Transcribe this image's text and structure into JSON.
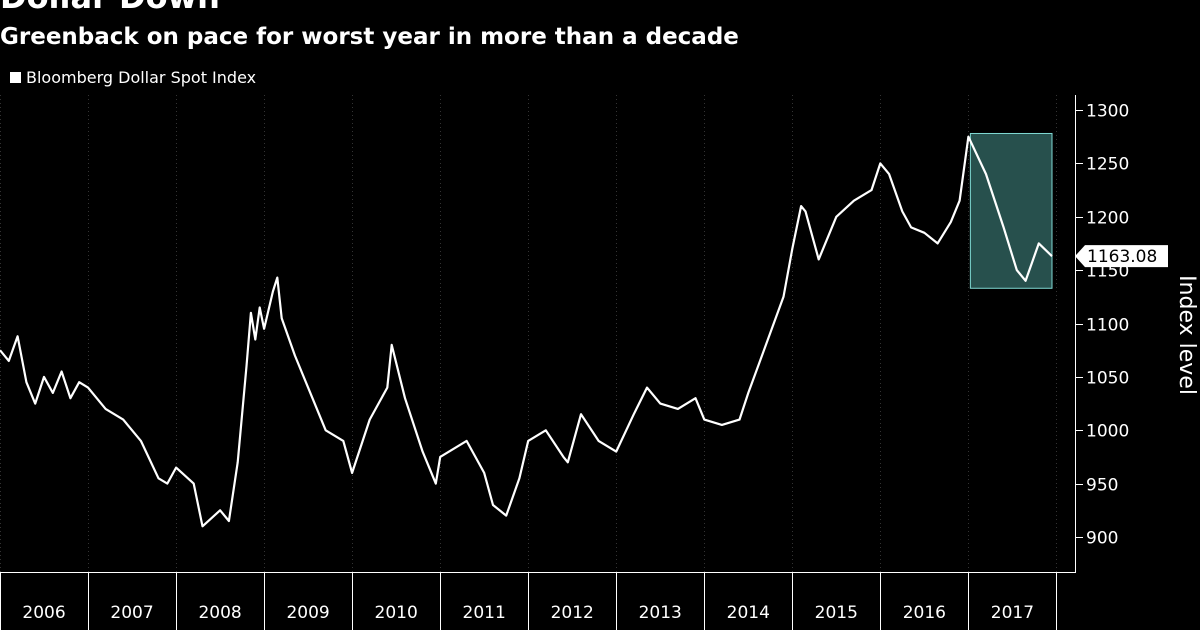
{
  "header": {
    "title": "Dollar Down",
    "subtitle": "Greenback on pace for worst year in more than a decade"
  },
  "legend": {
    "label": "Bloomberg Dollar Spot Index"
  },
  "last_value_label": "1163.08",
  "colors": {
    "background": "#000000",
    "line": "#ffffff",
    "highlight": "#2e5e5b",
    "highlight_border": "#7fd9d3"
  },
  "chart_data": {
    "type": "line",
    "title": "Dollar Down",
    "subtitle": "Greenback on pace for worst year in more than a decade",
    "xlabel": "",
    "ylabel": "Index level",
    "ylim": [
      870,
      1310
    ],
    "yticks": [
      900,
      950,
      1000,
      1050,
      1100,
      1150,
      1200,
      1250,
      1300
    ],
    "xlim": [
      2006.0,
      2018.0
    ],
    "x_categories": [
      "2006",
      "2007",
      "2008",
      "2009",
      "2010",
      "2011",
      "2012",
      "2013",
      "2014",
      "2015",
      "2016",
      "2017"
    ],
    "grid": {
      "vertical": true,
      "horizontal": false
    },
    "legend_position": "top-left",
    "highlight": {
      "x_start": 2017.0,
      "x_end": 2017.95,
      "y_start": 1133,
      "y_end": 1278
    },
    "last_value": 1163.08,
    "series": [
      {
        "name": "Bloomberg Dollar Spot Index",
        "x": [
          2006.0,
          2006.1,
          2006.2,
          2006.3,
          2006.4,
          2006.5,
          2006.6,
          2006.7,
          2006.8,
          2006.9,
          2007.0,
          2007.2,
          2007.4,
          2007.6,
          2007.8,
          2007.9,
          2008.0,
          2008.2,
          2008.3,
          2008.5,
          2008.6,
          2008.7,
          2008.8,
          2008.85,
          2008.9,
          2008.95,
          2009.0,
          2009.1,
          2009.15,
          2009.2,
          2009.35,
          2009.5,
          2009.7,
          2009.9,
          2010.0,
          2010.2,
          2010.4,
          2010.45,
          2010.6,
          2010.8,
          2010.95,
          2011.0,
          2011.3,
          2011.5,
          2011.6,
          2011.75,
          2011.9,
          2012.0,
          2012.2,
          2012.4,
          2012.45,
          2012.6,
          2012.8,
          2013.0,
          2013.2,
          2013.35,
          2013.5,
          2013.7,
          2013.9,
          2014.0,
          2014.2,
          2014.4,
          2014.5,
          2014.7,
          2014.9,
          2015.0,
          2015.1,
          2015.15,
          2015.3,
          2015.5,
          2015.7,
          2015.9,
          2016.0,
          2016.1,
          2016.25,
          2016.35,
          2016.5,
          2016.65,
          2016.8,
          2016.9,
          2017.0,
          2017.2,
          2017.4,
          2017.55,
          2017.65,
          2017.8,
          2017.95
        ],
        "y": [
          1075,
          1065,
          1088,
          1045,
          1025,
          1050,
          1035,
          1055,
          1030,
          1045,
          1040,
          1020,
          1010,
          990,
          955,
          950,
          965,
          950,
          910,
          925,
          915,
          970,
          1060,
          1110,
          1085,
          1115,
          1095,
          1130,
          1143,
          1105,
          1070,
          1040,
          1000,
          990,
          960,
          1010,
          1040,
          1080,
          1030,
          980,
          950,
          975,
          990,
          960,
          930,
          920,
          955,
          990,
          1000,
          975,
          970,
          1015,
          990,
          980,
          1015,
          1040,
          1025,
          1020,
          1030,
          1010,
          1005,
          1010,
          1035,
          1080,
          1125,
          1170,
          1210,
          1205,
          1160,
          1200,
          1215,
          1225,
          1250,
          1240,
          1205,
          1190,
          1185,
          1175,
          1195,
          1215,
          1275,
          1240,
          1190,
          1150,
          1140,
          1175,
          1163
        ]
      }
    ]
  }
}
